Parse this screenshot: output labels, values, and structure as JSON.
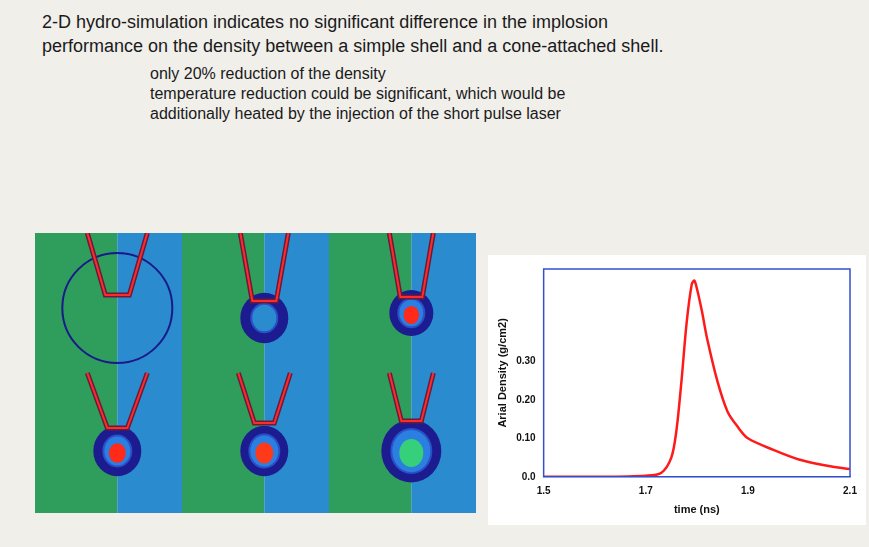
{
  "header": [
    "2-D hydro-simulation indicates no significant difference in the implosion",
    "performance on the density between a simple shell and a cone-attached shell."
  ],
  "notes": [
    "only 20% reduction of the density",
    "temperature reduction could be significant, which would be",
    "additionally heated by the injection of the short pulse laser"
  ],
  "chart_data": {
    "type": "line",
    "xlabel": "time (ns)",
    "ylabel": "Arial Density (g/cm2)",
    "x": [
      1.5,
      1.6,
      1.7,
      1.73,
      1.75,
      1.76,
      1.77,
      1.78,
      1.79,
      1.795,
      1.8,
      1.81,
      1.82,
      1.84,
      1.86,
      1.88,
      1.9,
      1.95,
      2.0,
      2.05,
      2.1
    ],
    "values": [
      0,
      0,
      0.003,
      0.01,
      0.05,
      0.12,
      0.25,
      0.4,
      0.5,
      0.51,
      0.49,
      0.43,
      0.36,
      0.25,
      0.17,
      0.13,
      0.1,
      0.07,
      0.045,
      0.03,
      0.02
    ],
    "color": "#ff1a1a",
    "xlim": [
      1.5,
      2.1
    ],
    "xticks": [
      1.5,
      1.7,
      1.9,
      2.1
    ],
    "ylim": [
      0,
      0.54
    ],
    "yticks": [
      {
        "value": 0,
        "label": "0.0"
      },
      {
        "value": 0.1,
        "label": "0.10"
      },
      {
        "value": 0.2,
        "label": "0.20"
      },
      {
        "value": 0.3,
        "label": "0.30"
      }
    ],
    "grid": false
  }
}
